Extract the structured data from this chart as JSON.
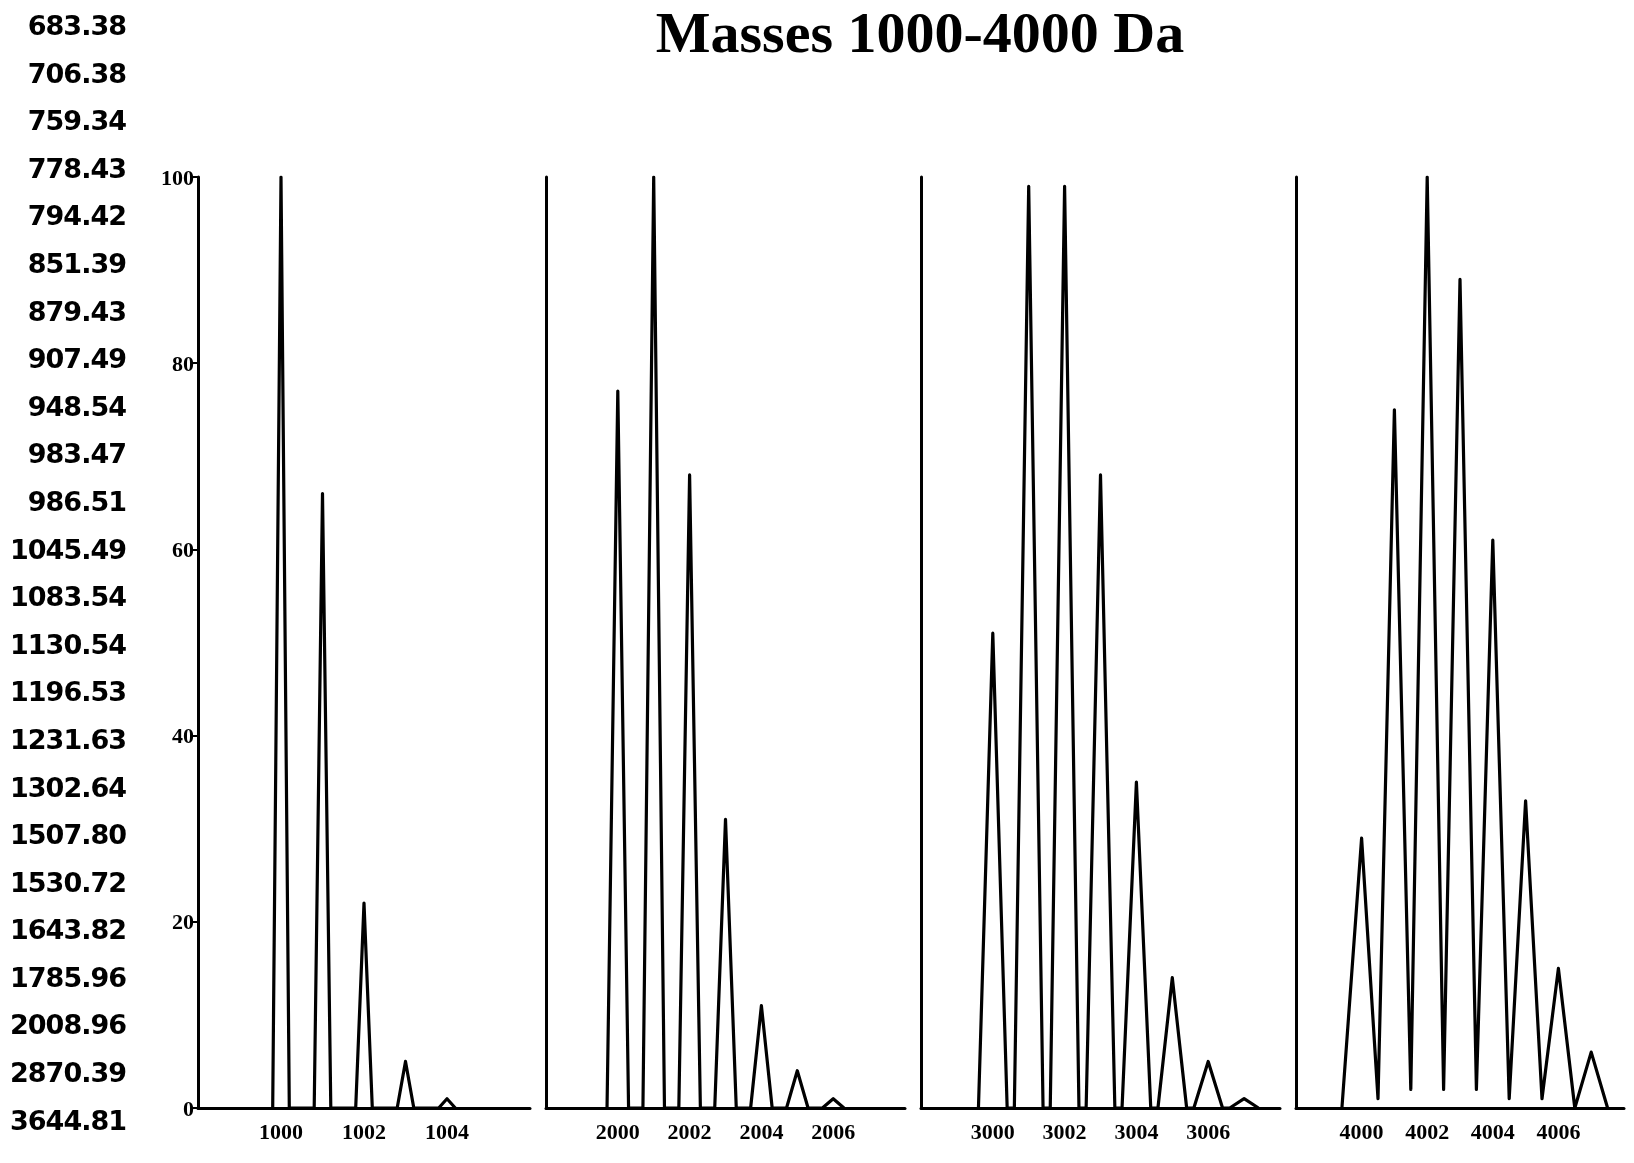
{
  "chart_data": [
    {
      "type": "other",
      "title": "Masses 1000-4000 Da",
      "annotations": [
        "683.38",
        "706.38",
        "759.34",
        "778.43",
        "794.42",
        "851.39",
        "879.43",
        "907.49",
        "948.54",
        "983.47",
        "986.51",
        "1045.49",
        "1083.54",
        "1130.54",
        "1196.53",
        "1231.63",
        "1302.64",
        "1507.80",
        "1530.72",
        "1643.82",
        "1785.96",
        "2008.96",
        "2870.39",
        "3644.81"
      ]
    },
    {
      "type": "line",
      "xlim": [
        998,
        1006
      ],
      "xticks": [
        1000,
        1002,
        1004
      ],
      "ylim": [
        0,
        100
      ],
      "yticks": [
        0,
        20,
        40,
        60,
        80,
        100
      ],
      "marker": "none",
      "series": [
        {
          "color": "#000000",
          "x": [
            999.8,
            1000,
            1000.2,
            1000.8,
            1001,
            1001.2,
            1001.8,
            1002,
            1002.2,
            1002.8,
            1003,
            1003.2,
            1003.8,
            1004,
            1004.2
          ],
          "values": [
            0,
            100,
            0,
            0,
            66,
            0,
            0,
            22,
            0,
            0,
            5,
            0,
            0,
            1,
            0
          ]
        }
      ]
    },
    {
      "type": "line",
      "xlim": [
        1998,
        2008
      ],
      "xticks": [
        2000,
        2002,
        2004,
        2006
      ],
      "ylim": [
        0,
        100
      ],
      "tick_labels": "x",
      "marker": "none",
      "series": [
        {
          "color": "#000000",
          "x": [
            1999.7,
            2000,
            2000.3,
            2000.7,
            2001,
            2001.3,
            2001.7,
            2002,
            2002.3,
            2002.7,
            2003,
            2003.3,
            2003.7,
            2004,
            2004.3,
            2004.7,
            2005,
            2005.3,
            2005.7,
            2006,
            2006.3
          ],
          "values": [
            0,
            77,
            0,
            0,
            100,
            0,
            0,
            68,
            0,
            0,
            31,
            0,
            0,
            11,
            0,
            0,
            4,
            0,
            0,
            1,
            0
          ]
        }
      ]
    },
    {
      "type": "line",
      "xlim": [
        2998,
        3008
      ],
      "xticks": [
        3000,
        3002,
        3004,
        3006
      ],
      "ylim": [
        0,
        100
      ],
      "tick_labels": "x",
      "marker": "none",
      "series": [
        {
          "color": "#000000",
          "x": [
            2999.6,
            3000,
            3000.4,
            3000.6,
            3001,
            3001.4,
            3001.6,
            3002,
            3002.4,
            3002.6,
            3003,
            3003.4,
            3003.6,
            3004,
            3004.4,
            3004.6,
            3005,
            3005.4,
            3005.6,
            3006,
            3006.4,
            3006.6,
            3007,
            3007.4
          ],
          "values": [
            0,
            51,
            0,
            0,
            99,
            0,
            0,
            99,
            0,
            0,
            68,
            0,
            0,
            35,
            0,
            0,
            14,
            0,
            0,
            5,
            0,
            0,
            1,
            0
          ]
        }
      ]
    },
    {
      "type": "line",
      "xlim": [
        3998,
        4008
      ],
      "xticks": [
        4000,
        4002,
        4004,
        4006
      ],
      "ylim": [
        0,
        100
      ],
      "tick_labels": "x",
      "marker": "none",
      "series": [
        {
          "color": "#000000",
          "x": [
            3999.4,
            4000,
            4000.5,
            4001,
            4001.5,
            4002,
            4002.5,
            4003,
            4003.5,
            4004,
            4004.5,
            4005,
            4005.5,
            4006,
            4006.5,
            4007,
            4007.5
          ],
          "values": [
            0,
            29,
            1,
            75,
            2,
            100,
            2,
            89,
            2,
            61,
            1,
            33,
            1,
            15,
            0,
            6,
            0
          ]
        }
      ]
    }
  ]
}
